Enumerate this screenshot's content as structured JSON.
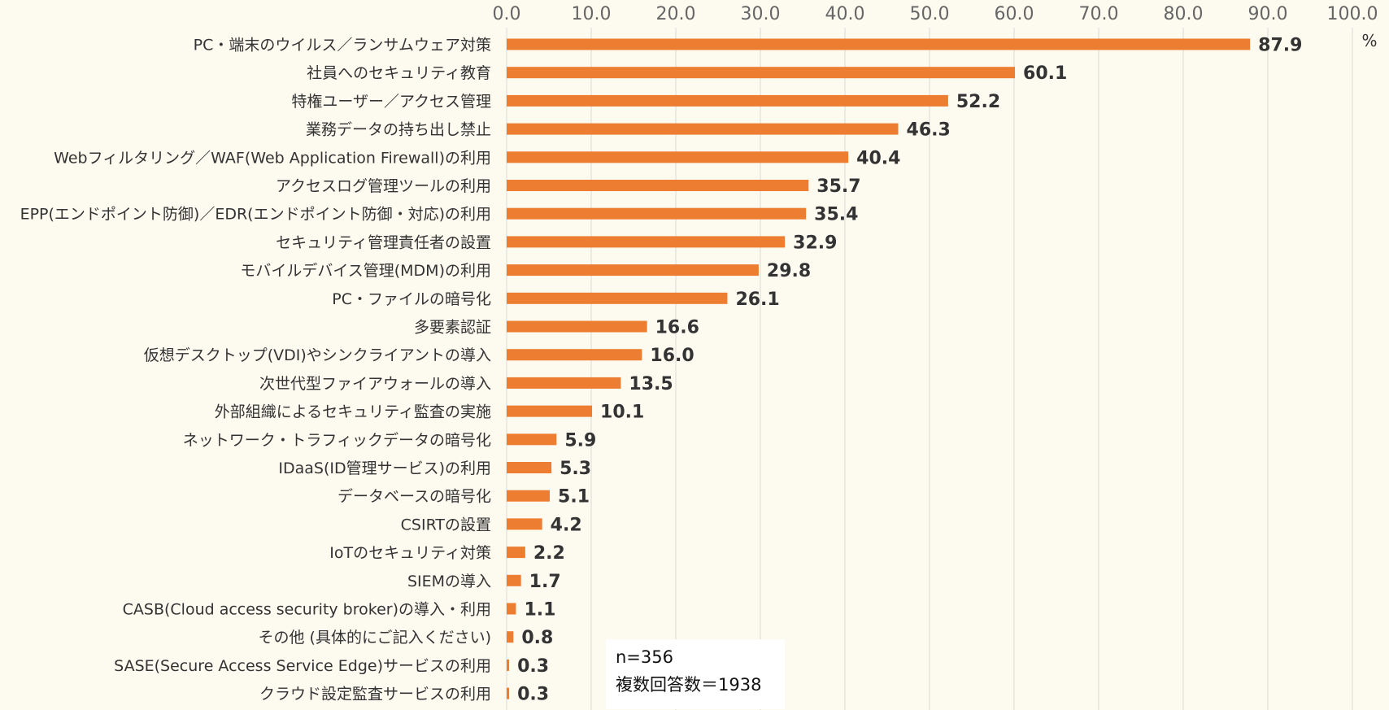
{
  "chart_data": {
    "type": "bar",
    "orientation": "horizontal",
    "categories": [
      "PC・端末のウイルス／ランサムウェア対策",
      "社員へのセキュリティ教育",
      "特権ユーザー／アクセス管理",
      "業務データの持ち出し禁止",
      "Webフィルタリング／WAF(Web Application Firewall)の利用",
      "アクセスログ管理ツールの利用",
      "EPP(エンドポイント防御)／EDR(エンドポイント防御・対応)の利用",
      "セキュリティ管理責任者の設置",
      "モバイルデバイス管理(MDM)の利用",
      "PC・ファイルの暗号化",
      "多要素認証",
      "仮想デスクトップ(VDI)やシンクライアントの導入",
      "次世代型ファイアウォールの導入",
      "外部組織によるセキュリティ監査の実施",
      "ネットワーク・トラフィックデータの暗号化",
      "IDaaS(ID管理サービス)の利用",
      "データベースの暗号化",
      "CSIRTの設置",
      "IoTのセキュリティ対策",
      "SIEMの導入",
      "CASB(Cloud access security broker)の導入・利用",
      "その他 (具体的にご記入ください)",
      "SASE(Secure Access Service Edge)サービスの利用",
      "クラウド設定監査サービスの利用"
    ],
    "values": [
      87.9,
      60.1,
      52.2,
      46.3,
      40.4,
      35.7,
      35.4,
      32.9,
      29.8,
      26.1,
      16.6,
      16.0,
      13.5,
      10.1,
      5.9,
      5.3,
      5.1,
      4.2,
      2.2,
      1.7,
      1.1,
      0.8,
      0.3,
      0.3
    ],
    "value_labels": [
      "87.9",
      "60.1",
      "52.2",
      "46.3",
      "40.4",
      "35.7",
      "35.4",
      "32.9",
      "29.8",
      "26.1",
      "16.6",
      "16.0",
      "13.5",
      "10.1",
      "5.9",
      "5.3",
      "5.1",
      "4.2",
      "2.2",
      "1.7",
      "1.1",
      "0.8",
      "0.3",
      "0.3"
    ],
    "xlim": [
      0,
      100
    ],
    "x_ticks": [
      "0.0",
      "10.0",
      "20.0",
      "30.0",
      "40.0",
      "50.0",
      "60.0",
      "70.0",
      "80.0",
      "90.0",
      "100.0"
    ],
    "axis_position": "top",
    "unit": "%",
    "grid": true,
    "bar_color": "#ed7d31",
    "grid_color": "#d9d9d9",
    "background_color": "#fdfaf0"
  },
  "note": {
    "sample": "n=356",
    "responses": "複数回答数＝1938"
  }
}
